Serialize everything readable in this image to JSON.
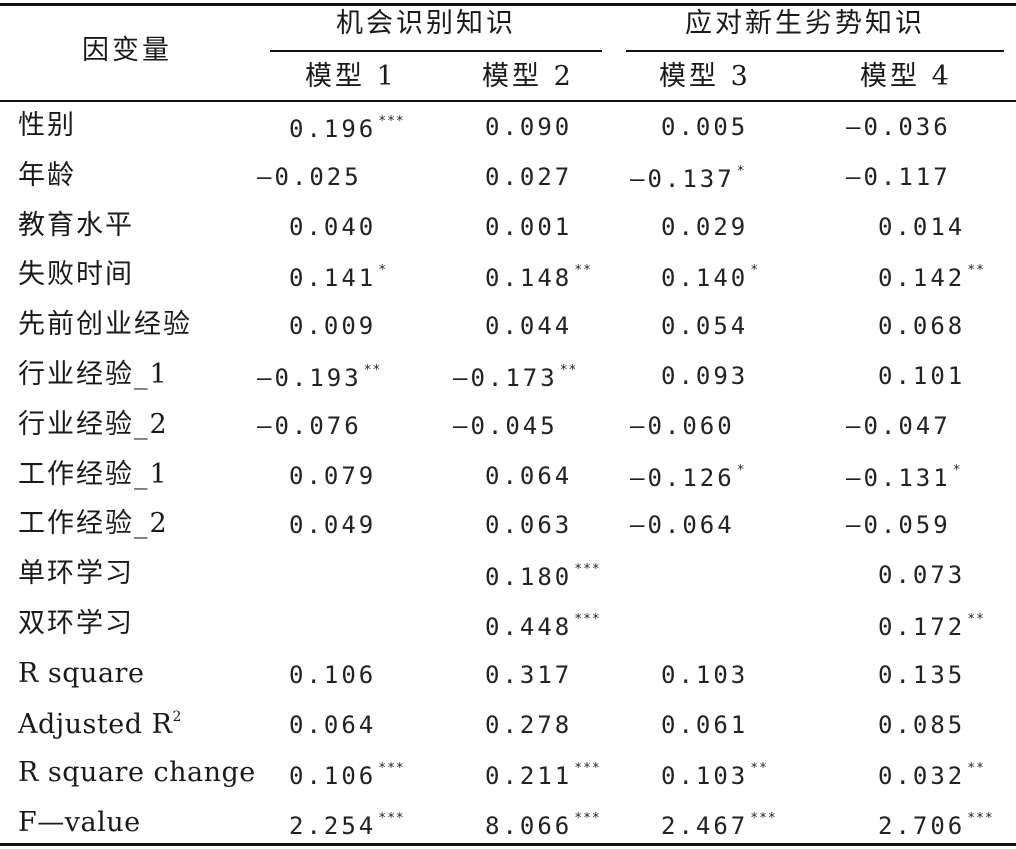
{
  "table": {
    "header": {
      "dependent_variable": "因变量",
      "group1": "机会识别知识",
      "group2": "应对新生劣势知识",
      "models": [
        "模型 1",
        "模型 2",
        "模型 3",
        "模型 4"
      ]
    },
    "rows": [
      {
        "label": "性别",
        "cells": [
          {
            "v": "0.196",
            "s": "***"
          },
          {
            "v": "0.090",
            "s": ""
          },
          {
            "v": "0.005",
            "s": ""
          },
          {
            "v": "—0.036",
            "s": ""
          }
        ]
      },
      {
        "label": "年龄",
        "cells": [
          {
            "v": "—0.025",
            "s": ""
          },
          {
            "v": "0.027",
            "s": ""
          },
          {
            "v": "—0.137",
            "s": "*"
          },
          {
            "v": "—0.117",
            "s": ""
          }
        ]
      },
      {
        "label": "教育水平",
        "cells": [
          {
            "v": "0.040",
            "s": ""
          },
          {
            "v": "0.001",
            "s": ""
          },
          {
            "v": "0.029",
            "s": ""
          },
          {
            "v": "0.014",
            "s": ""
          }
        ]
      },
      {
        "label": "失败时间",
        "cells": [
          {
            "v": "0.141",
            "s": "*"
          },
          {
            "v": "0.148",
            "s": "**"
          },
          {
            "v": "0.140",
            "s": "*"
          },
          {
            "v": "0.142",
            "s": "**"
          }
        ]
      },
      {
        "label": "先前创业经验",
        "cells": [
          {
            "v": "0.009",
            "s": ""
          },
          {
            "v": "0.044",
            "s": ""
          },
          {
            "v": "0.054",
            "s": ""
          },
          {
            "v": "0.068",
            "s": ""
          }
        ]
      },
      {
        "label": "行业经验_1",
        "cells": [
          {
            "v": "—0.193",
            "s": "**"
          },
          {
            "v": "—0.173",
            "s": "**"
          },
          {
            "v": "0.093",
            "s": ""
          },
          {
            "v": "0.101",
            "s": ""
          }
        ]
      },
      {
        "label": "行业经验_2",
        "cells": [
          {
            "v": "—0.076",
            "s": ""
          },
          {
            "v": "—0.045",
            "s": ""
          },
          {
            "v": "—0.060",
            "s": ""
          },
          {
            "v": "—0.047",
            "s": ""
          }
        ]
      },
      {
        "label": "工作经验_1",
        "cells": [
          {
            "v": "0.079",
            "s": ""
          },
          {
            "v": "0.064",
            "s": ""
          },
          {
            "v": "—0.126",
            "s": "*"
          },
          {
            "v": "—0.131",
            "s": "*"
          }
        ]
      },
      {
        "label": "工作经验_2",
        "cells": [
          {
            "v": "0.049",
            "s": ""
          },
          {
            "v": "0.063",
            "s": ""
          },
          {
            "v": "—0.064",
            "s": ""
          },
          {
            "v": "—0.059",
            "s": ""
          }
        ]
      },
      {
        "label": "单环学习",
        "cells": [
          {
            "v": "",
            "s": ""
          },
          {
            "v": "0.180",
            "s": "***"
          },
          {
            "v": "",
            "s": ""
          },
          {
            "v": "0.073",
            "s": ""
          }
        ]
      },
      {
        "label": "双环学习",
        "cells": [
          {
            "v": "",
            "s": ""
          },
          {
            "v": "0.448",
            "s": "***"
          },
          {
            "v": "",
            "s": ""
          },
          {
            "v": "0.172",
            "s": "**"
          }
        ]
      },
      {
        "label": "R square",
        "cells": [
          {
            "v": "0.106",
            "s": ""
          },
          {
            "v": "0.317",
            "s": ""
          },
          {
            "v": "0.103",
            "s": ""
          },
          {
            "v": "0.135",
            "s": ""
          }
        ]
      },
      {
        "label": "Adjusted R",
        "label_sup": "2",
        "cells": [
          {
            "v": "0.064",
            "s": ""
          },
          {
            "v": "0.278",
            "s": ""
          },
          {
            "v": "0.061",
            "s": ""
          },
          {
            "v": "0.085",
            "s": ""
          }
        ]
      },
      {
        "label": "R square change",
        "cells": [
          {
            "v": "0.106",
            "s": "***"
          },
          {
            "v": "0.211",
            "s": "***"
          },
          {
            "v": "0.103",
            "s": "**"
          },
          {
            "v": "0.032",
            "s": "**"
          }
        ]
      },
      {
        "label": "F—value",
        "cells": [
          {
            "v": "2.254",
            "s": "***"
          },
          {
            "v": "8.066",
            "s": "***"
          },
          {
            "v": "2.467",
            "s": "***"
          },
          {
            "v": "2.706",
            "s": "***"
          }
        ]
      }
    ]
  }
}
